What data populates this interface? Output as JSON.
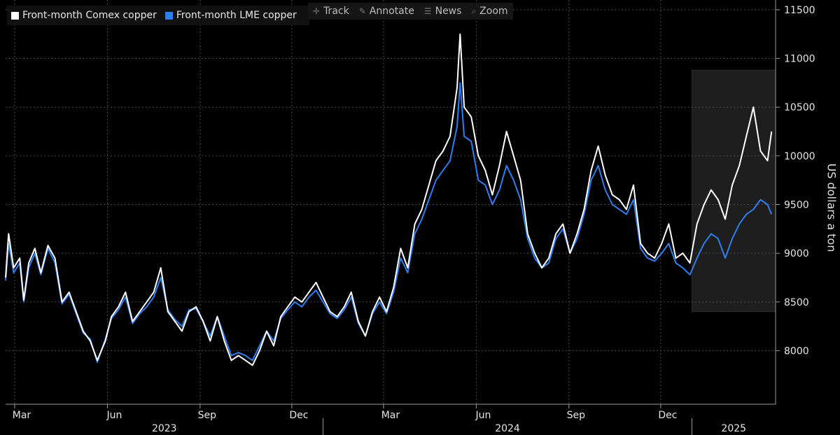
{
  "legend": [
    {
      "label": "Front-month Comex copper",
      "color": "#ffffff"
    },
    {
      "label": "Front-month LME copper",
      "color": "#2f7ef0"
    }
  ],
  "toolbar": [
    {
      "label": "Track",
      "icon": "crosshair-icon"
    },
    {
      "label": "Annotate",
      "icon": "pencil-icon"
    },
    {
      "label": "News",
      "icon": "news-icon"
    },
    {
      "label": "Zoom",
      "icon": "zoom-icon"
    }
  ],
  "chart_data": {
    "type": "line",
    "ylabel": "US dollars a ton",
    "ylim": [
      7450,
      11600
    ],
    "yticks": [
      8000,
      8500,
      9000,
      9500,
      10000,
      10500,
      11000,
      11500
    ],
    "xlim": [
      "2023-02-20",
      "2025-03-25"
    ],
    "x_month_labels": [
      {
        "label": "Mar",
        "date": "2023-03-01"
      },
      {
        "label": "Jun",
        "date": "2023-06-01"
      },
      {
        "label": "Sep",
        "date": "2023-09-01"
      },
      {
        "label": "Dec",
        "date": "2023-12-01"
      },
      {
        "label": "Mar",
        "date": "2024-03-01"
      },
      {
        "label": "Jun",
        "date": "2024-06-01"
      },
      {
        "label": "Sep",
        "date": "2024-09-01"
      },
      {
        "label": "Dec",
        "date": "2024-12-01"
      }
    ],
    "x_year_labels": [
      {
        "label": "2023",
        "from": "2023-02-20",
        "to": "2024-01-01"
      },
      {
        "label": "2024",
        "from": "2024-01-01",
        "to": "2025-01-01"
      },
      {
        "label": "2025",
        "from": "2025-01-01",
        "to": "2025-03-25"
      }
    ],
    "highlight": {
      "x_from": "2025-01-01",
      "x_to": "2025-03-25",
      "y_from": 8400,
      "y_to": 10880,
      "color": "#1e1e1e"
    },
    "grid": true,
    "legend_position": "top-left",
    "series": [
      {
        "name": "Front-month Comex copper",
        "color": "#ffffff",
        "points": [
          [
            "2023-02-20",
            8750
          ],
          [
            "2023-02-23",
            9200
          ],
          [
            "2023-02-28",
            8850
          ],
          [
            "2023-03-06",
            8950
          ],
          [
            "2023-03-10",
            8520
          ],
          [
            "2023-03-15",
            8900
          ],
          [
            "2023-03-21",
            9050
          ],
          [
            "2023-03-27",
            8800
          ],
          [
            "2023-04-03",
            9080
          ],
          [
            "2023-04-10",
            8950
          ],
          [
            "2023-04-17",
            8500
          ],
          [
            "2023-04-24",
            8600
          ],
          [
            "2023-05-01",
            8400
          ],
          [
            "2023-05-08",
            8200
          ],
          [
            "2023-05-15",
            8100
          ],
          [
            "2023-05-22",
            7900
          ],
          [
            "2023-05-30",
            8100
          ],
          [
            "2023-06-05",
            8350
          ],
          [
            "2023-06-12",
            8450
          ],
          [
            "2023-06-19",
            8600
          ],
          [
            "2023-06-26",
            8300
          ],
          [
            "2023-07-03",
            8400
          ],
          [
            "2023-07-10",
            8500
          ],
          [
            "2023-07-17",
            8600
          ],
          [
            "2023-07-24",
            8850
          ],
          [
            "2023-07-31",
            8400
          ],
          [
            "2023-08-07",
            8300
          ],
          [
            "2023-08-14",
            8200
          ],
          [
            "2023-08-21",
            8400
          ],
          [
            "2023-08-28",
            8450
          ],
          [
            "2023-09-04",
            8300
          ],
          [
            "2023-09-11",
            8100
          ],
          [
            "2023-09-18",
            8350
          ],
          [
            "2023-09-25",
            8100
          ],
          [
            "2023-10-02",
            7900
          ],
          [
            "2023-10-09",
            7950
          ],
          [
            "2023-10-16",
            7900
          ],
          [
            "2023-10-23",
            7850
          ],
          [
            "2023-10-30",
            8000
          ],
          [
            "2023-11-06",
            8200
          ],
          [
            "2023-11-13",
            8050
          ],
          [
            "2023-11-20",
            8350
          ],
          [
            "2023-11-27",
            8450
          ],
          [
            "2023-12-04",
            8550
          ],
          [
            "2023-12-11",
            8500
          ],
          [
            "2023-12-18",
            8600
          ],
          [
            "2023-12-25",
            8700
          ],
          [
            "2024-01-01",
            8550
          ],
          [
            "2024-01-08",
            8400
          ],
          [
            "2024-01-15",
            8350
          ],
          [
            "2024-01-22",
            8450
          ],
          [
            "2024-01-29",
            8600
          ],
          [
            "2024-02-05",
            8300
          ],
          [
            "2024-02-12",
            8150
          ],
          [
            "2024-02-19",
            8400
          ],
          [
            "2024-02-26",
            8550
          ],
          [
            "2024-03-04",
            8400
          ],
          [
            "2024-03-11",
            8650
          ],
          [
            "2024-03-18",
            9050
          ],
          [
            "2024-03-25",
            8850
          ],
          [
            "2024-04-01",
            9300
          ],
          [
            "2024-04-08",
            9450
          ],
          [
            "2024-04-15",
            9700
          ],
          [
            "2024-04-22",
            9950
          ],
          [
            "2024-04-29",
            10050
          ],
          [
            "2024-05-06",
            10200
          ],
          [
            "2024-05-13",
            10700
          ],
          [
            "2024-05-16",
            11250
          ],
          [
            "2024-05-20",
            10500
          ],
          [
            "2024-05-27",
            10400
          ],
          [
            "2024-06-03",
            10000
          ],
          [
            "2024-06-10",
            9850
          ],
          [
            "2024-06-17",
            9600
          ],
          [
            "2024-06-24",
            9900
          ],
          [
            "2024-07-01",
            10250
          ],
          [
            "2024-07-08",
            10000
          ],
          [
            "2024-07-15",
            9750
          ],
          [
            "2024-07-22",
            9200
          ],
          [
            "2024-07-29",
            9000
          ],
          [
            "2024-08-05",
            8850
          ],
          [
            "2024-08-12",
            8950
          ],
          [
            "2024-08-19",
            9200
          ],
          [
            "2024-08-26",
            9300
          ],
          [
            "2024-09-02",
            9000
          ],
          [
            "2024-09-09",
            9200
          ],
          [
            "2024-09-16",
            9450
          ],
          [
            "2024-09-23",
            9850
          ],
          [
            "2024-09-30",
            10100
          ],
          [
            "2024-10-07",
            9800
          ],
          [
            "2024-10-14",
            9600
          ],
          [
            "2024-10-21",
            9550
          ],
          [
            "2024-10-28",
            9450
          ],
          [
            "2024-11-04",
            9700
          ],
          [
            "2024-11-11",
            9100
          ],
          [
            "2024-11-18",
            9000
          ],
          [
            "2024-11-25",
            8950
          ],
          [
            "2024-12-02",
            9100
          ],
          [
            "2024-12-09",
            9300
          ],
          [
            "2024-12-16",
            8950
          ],
          [
            "2024-12-23",
            9000
          ],
          [
            "2024-12-30",
            8900
          ],
          [
            "2025-01-06",
            9300
          ],
          [
            "2025-01-13",
            9500
          ],
          [
            "2025-01-20",
            9650
          ],
          [
            "2025-01-27",
            9550
          ],
          [
            "2025-02-03",
            9350
          ],
          [
            "2025-02-10",
            9700
          ],
          [
            "2025-02-17",
            9900
          ],
          [
            "2025-02-24",
            10200
          ],
          [
            "2025-03-03",
            10500
          ],
          [
            "2025-03-10",
            10050
          ],
          [
            "2025-03-17",
            9950
          ],
          [
            "2025-03-21",
            10250
          ]
        ]
      },
      {
        "name": "Front-month LME copper",
        "color": "#2f7ef0",
        "points": [
          [
            "2023-02-20",
            8720
          ],
          [
            "2023-02-23",
            9100
          ],
          [
            "2023-02-28",
            8800
          ],
          [
            "2023-03-06",
            8900
          ],
          [
            "2023-03-10",
            8500
          ],
          [
            "2023-03-15",
            8850
          ],
          [
            "2023-03-21",
            9000
          ],
          [
            "2023-03-27",
            8780
          ],
          [
            "2023-04-03",
            9050
          ],
          [
            "2023-04-10",
            8900
          ],
          [
            "2023-04-17",
            8480
          ],
          [
            "2023-04-24",
            8580
          ],
          [
            "2023-05-01",
            8380
          ],
          [
            "2023-05-08",
            8180
          ],
          [
            "2023-05-15",
            8120
          ],
          [
            "2023-05-22",
            7880
          ],
          [
            "2023-05-30",
            8120
          ],
          [
            "2023-06-05",
            8330
          ],
          [
            "2023-06-12",
            8420
          ],
          [
            "2023-06-19",
            8550
          ],
          [
            "2023-06-26",
            8280
          ],
          [
            "2023-07-03",
            8380
          ],
          [
            "2023-07-10",
            8450
          ],
          [
            "2023-07-17",
            8550
          ],
          [
            "2023-07-24",
            8750
          ],
          [
            "2023-07-31",
            8420
          ],
          [
            "2023-08-07",
            8320
          ],
          [
            "2023-08-14",
            8250
          ],
          [
            "2023-08-21",
            8420
          ],
          [
            "2023-08-28",
            8430
          ],
          [
            "2023-09-04",
            8300
          ],
          [
            "2023-09-11",
            8150
          ],
          [
            "2023-09-18",
            8350
          ],
          [
            "2023-09-25",
            8150
          ],
          [
            "2023-10-02",
            7950
          ],
          [
            "2023-10-09",
            7980
          ],
          [
            "2023-10-16",
            7950
          ],
          [
            "2023-10-23",
            7900
          ],
          [
            "2023-10-30",
            8050
          ],
          [
            "2023-11-06",
            8200
          ],
          [
            "2023-11-13",
            8100
          ],
          [
            "2023-11-20",
            8330
          ],
          [
            "2023-11-27",
            8420
          ],
          [
            "2023-12-04",
            8500
          ],
          [
            "2023-12-11",
            8450
          ],
          [
            "2023-12-18",
            8550
          ],
          [
            "2023-12-25",
            8620
          ],
          [
            "2024-01-01",
            8500
          ],
          [
            "2024-01-08",
            8380
          ],
          [
            "2024-01-15",
            8330
          ],
          [
            "2024-01-22",
            8420
          ],
          [
            "2024-01-29",
            8550
          ],
          [
            "2024-02-05",
            8280
          ],
          [
            "2024-02-12",
            8150
          ],
          [
            "2024-02-19",
            8380
          ],
          [
            "2024-02-26",
            8500
          ],
          [
            "2024-03-04",
            8380
          ],
          [
            "2024-03-11",
            8600
          ],
          [
            "2024-03-18",
            8950
          ],
          [
            "2024-03-25",
            8800
          ],
          [
            "2024-04-01",
            9200
          ],
          [
            "2024-04-08",
            9350
          ],
          [
            "2024-04-15",
            9550
          ],
          [
            "2024-04-22",
            9750
          ],
          [
            "2024-04-29",
            9850
          ],
          [
            "2024-05-06",
            9950
          ],
          [
            "2024-05-13",
            10300
          ],
          [
            "2024-05-16",
            10750
          ],
          [
            "2024-05-20",
            10200
          ],
          [
            "2024-05-27",
            10150
          ],
          [
            "2024-06-03",
            9750
          ],
          [
            "2024-06-10",
            9700
          ],
          [
            "2024-06-17",
            9500
          ],
          [
            "2024-06-24",
            9650
          ],
          [
            "2024-07-01",
            9900
          ],
          [
            "2024-07-08",
            9750
          ],
          [
            "2024-07-15",
            9550
          ],
          [
            "2024-07-22",
            9150
          ],
          [
            "2024-07-29",
            8950
          ],
          [
            "2024-08-05",
            8850
          ],
          [
            "2024-08-12",
            8900
          ],
          [
            "2024-08-19",
            9150
          ],
          [
            "2024-08-26",
            9250
          ],
          [
            "2024-09-02",
            9000
          ],
          [
            "2024-09-09",
            9150
          ],
          [
            "2024-09-16",
            9400
          ],
          [
            "2024-09-23",
            9750
          ],
          [
            "2024-09-30",
            9900
          ],
          [
            "2024-10-07",
            9650
          ],
          [
            "2024-10-14",
            9500
          ],
          [
            "2024-10-21",
            9450
          ],
          [
            "2024-10-28",
            9400
          ],
          [
            "2024-11-04",
            9550
          ],
          [
            "2024-11-11",
            9050
          ],
          [
            "2024-11-18",
            8950
          ],
          [
            "2024-11-25",
            8920
          ],
          [
            "2024-12-02",
            9000
          ],
          [
            "2024-12-09",
            9100
          ],
          [
            "2024-12-16",
            8900
          ],
          [
            "2024-12-23",
            8850
          ],
          [
            "2024-12-30",
            8780
          ],
          [
            "2025-01-06",
            8950
          ],
          [
            "2025-01-13",
            9100
          ],
          [
            "2025-01-20",
            9200
          ],
          [
            "2025-01-27",
            9150
          ],
          [
            "2025-02-03",
            8950
          ],
          [
            "2025-02-10",
            9150
          ],
          [
            "2025-02-17",
            9300
          ],
          [
            "2025-02-24",
            9400
          ],
          [
            "2025-03-03",
            9450
          ],
          [
            "2025-03-10",
            9550
          ],
          [
            "2025-03-17",
            9500
          ],
          [
            "2025-03-21",
            9400
          ]
        ]
      }
    ]
  }
}
